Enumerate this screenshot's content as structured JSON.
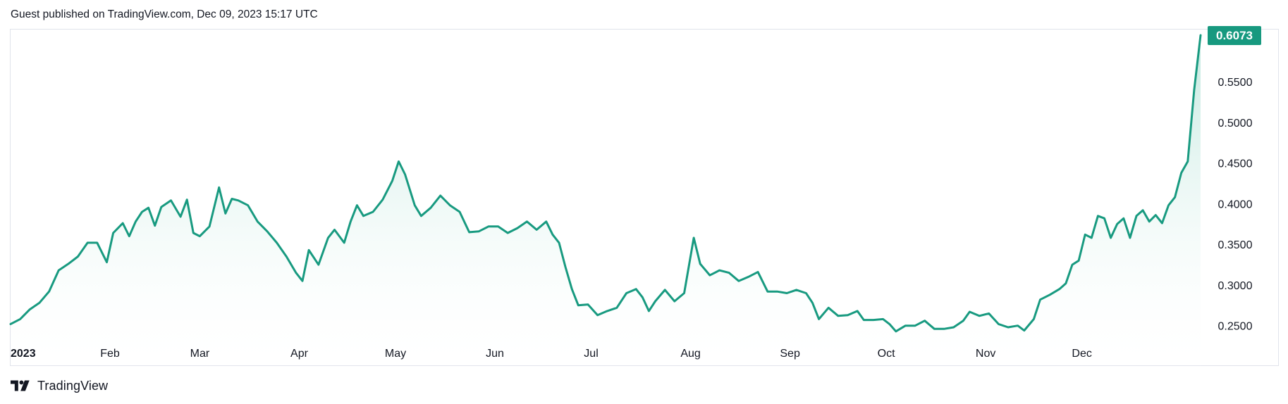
{
  "header": {
    "published_text": "Guest published on TradingView.com, Dec 09, 2023 15:17 UTC"
  },
  "footer": {
    "logo_icon": "tradingview-logo-icon",
    "brand_text": "TradingView"
  },
  "colors": {
    "line": "#189a80",
    "fill_top": "#b7e4d9",
    "badge_bg": "#17997f",
    "axis_text": "#131722",
    "border": "#e0e3eb"
  },
  "chart_data": {
    "type": "area",
    "title": "",
    "xlabel": "",
    "ylabel": "",
    "grid": false,
    "x_tick_labels": [
      "2023",
      "Feb",
      "Mar",
      "Apr",
      "May",
      "Jun",
      "Jul",
      "Aug",
      "Sep",
      "Oct",
      "Nov",
      "Dec"
    ],
    "y_tick_labels": [
      "0.2500",
      "0.3000",
      "0.3500",
      "0.4000",
      "0.4500",
      "0.5000",
      "0.5500"
    ],
    "ylim": [
      0.235,
      0.6125
    ],
    "last_value_label": "0.6073",
    "series": [
      {
        "points": [
          [
            "2023-01-01",
            0.252
          ],
          [
            "2023-01-04",
            0.258
          ],
          [
            "2023-01-07",
            0.27
          ],
          [
            "2023-01-10",
            0.278
          ],
          [
            "2023-01-13",
            0.292
          ],
          [
            "2023-01-16",
            0.318
          ],
          [
            "2023-01-19",
            0.326
          ],
          [
            "2023-01-22",
            0.335
          ],
          [
            "2023-01-25",
            0.352
          ],
          [
            "2023-01-28",
            0.352
          ],
          [
            "2023-01-31",
            0.328
          ],
          [
            "2023-02-02",
            0.364
          ],
          [
            "2023-02-05",
            0.376
          ],
          [
            "2023-02-07",
            0.36
          ],
          [
            "2023-02-09",
            0.378
          ],
          [
            "2023-02-11",
            0.39
          ],
          [
            "2023-02-13",
            0.395
          ],
          [
            "2023-02-15",
            0.373
          ],
          [
            "2023-02-17",
            0.396
          ],
          [
            "2023-02-20",
            0.404
          ],
          [
            "2023-02-23",
            0.384
          ],
          [
            "2023-02-25",
            0.405
          ],
          [
            "2023-02-27",
            0.364
          ],
          [
            "2023-03-01",
            0.36
          ],
          [
            "2023-03-04",
            0.372
          ],
          [
            "2023-03-07",
            0.42
          ],
          [
            "2023-03-09",
            0.388
          ],
          [
            "2023-03-11",
            0.406
          ],
          [
            "2023-03-13",
            0.404
          ],
          [
            "2023-03-16",
            0.398
          ],
          [
            "2023-03-19",
            0.378
          ],
          [
            "2023-03-22",
            0.366
          ],
          [
            "2023-03-25",
            0.352
          ],
          [
            "2023-03-28",
            0.335
          ],
          [
            "2023-03-31",
            0.315
          ],
          [
            "2023-04-02",
            0.305
          ],
          [
            "2023-04-04",
            0.343
          ],
          [
            "2023-04-07",
            0.325
          ],
          [
            "2023-04-10",
            0.358
          ],
          [
            "2023-04-12",
            0.368
          ],
          [
            "2023-04-15",
            0.352
          ],
          [
            "2023-04-17",
            0.378
          ],
          [
            "2023-04-19",
            0.398
          ],
          [
            "2023-04-21",
            0.385
          ],
          [
            "2023-04-24",
            0.39
          ],
          [
            "2023-04-27",
            0.405
          ],
          [
            "2023-04-30",
            0.428
          ],
          [
            "2023-05-02",
            0.452
          ],
          [
            "2023-05-04",
            0.436
          ],
          [
            "2023-05-07",
            0.398
          ],
          [
            "2023-05-09",
            0.385
          ],
          [
            "2023-05-12",
            0.395
          ],
          [
            "2023-05-15",
            0.41
          ],
          [
            "2023-05-18",
            0.398
          ],
          [
            "2023-05-21",
            0.39
          ],
          [
            "2023-05-24",
            0.365
          ],
          [
            "2023-05-27",
            0.366
          ],
          [
            "2023-05-30",
            0.372
          ],
          [
            "2023-06-02",
            0.372
          ],
          [
            "2023-06-05",
            0.364
          ],
          [
            "2023-06-08",
            0.37
          ],
          [
            "2023-06-11",
            0.378
          ],
          [
            "2023-06-14",
            0.368
          ],
          [
            "2023-06-17",
            0.378
          ],
          [
            "2023-06-19",
            0.362
          ],
          [
            "2023-06-21",
            0.352
          ],
          [
            "2023-06-23",
            0.322
          ],
          [
            "2023-06-25",
            0.295
          ],
          [
            "2023-06-27",
            0.275
          ],
          [
            "2023-06-30",
            0.276
          ],
          [
            "2023-07-03",
            0.263
          ],
          [
            "2023-07-06",
            0.268
          ],
          [
            "2023-07-09",
            0.272
          ],
          [
            "2023-07-12",
            0.29
          ],
          [
            "2023-07-15",
            0.295
          ],
          [
            "2023-07-17",
            0.285
          ],
          [
            "2023-07-19",
            0.268
          ],
          [
            "2023-07-21",
            0.28
          ],
          [
            "2023-07-24",
            0.294
          ],
          [
            "2023-07-27",
            0.28
          ],
          [
            "2023-07-30",
            0.29
          ],
          [
            "2023-08-02",
            0.358
          ],
          [
            "2023-08-04",
            0.326
          ],
          [
            "2023-08-07",
            0.312
          ],
          [
            "2023-08-10",
            0.318
          ],
          [
            "2023-08-13",
            0.315
          ],
          [
            "2023-08-16",
            0.305
          ],
          [
            "2023-08-19",
            0.31
          ],
          [
            "2023-08-22",
            0.316
          ],
          [
            "2023-08-25",
            0.292
          ],
          [
            "2023-08-28",
            0.292
          ],
          [
            "2023-08-31",
            0.29
          ],
          [
            "2023-09-03",
            0.294
          ],
          [
            "2023-09-06",
            0.29
          ],
          [
            "2023-09-08",
            0.278
          ],
          [
            "2023-09-10",
            0.258
          ],
          [
            "2023-09-13",
            0.272
          ],
          [
            "2023-09-16",
            0.262
          ],
          [
            "2023-09-19",
            0.263
          ],
          [
            "2023-09-22",
            0.268
          ],
          [
            "2023-09-24",
            0.257
          ],
          [
            "2023-09-27",
            0.257
          ],
          [
            "2023-09-30",
            0.258
          ],
          [
            "2023-10-02",
            0.252
          ],
          [
            "2023-10-04",
            0.243
          ],
          [
            "2023-10-07",
            0.25
          ],
          [
            "2023-10-10",
            0.25
          ],
          [
            "2023-10-13",
            0.256
          ],
          [
            "2023-10-16",
            0.246
          ],
          [
            "2023-10-19",
            0.246
          ],
          [
            "2023-10-22",
            0.248
          ],
          [
            "2023-10-25",
            0.256
          ],
          [
            "2023-10-27",
            0.267
          ],
          [
            "2023-10-30",
            0.262
          ],
          [
            "2023-11-02",
            0.265
          ],
          [
            "2023-11-05",
            0.252
          ],
          [
            "2023-11-08",
            0.248
          ],
          [
            "2023-11-11",
            0.25
          ],
          [
            "2023-11-13",
            0.244
          ],
          [
            "2023-11-16",
            0.258
          ],
          [
            "2023-11-18",
            0.282
          ],
          [
            "2023-11-21",
            0.288
          ],
          [
            "2023-11-24",
            0.295
          ],
          [
            "2023-11-26",
            0.302
          ],
          [
            "2023-11-28",
            0.325
          ],
          [
            "2023-11-30",
            0.33
          ],
          [
            "2023-12-02",
            0.362
          ],
          [
            "2023-12-04",
            0.358
          ],
          [
            "2023-12-06",
            0.385
          ],
          [
            "2023-12-08",
            0.382
          ],
          [
            "2023-12-10",
            0.358
          ],
          [
            "2023-12-12",
            0.375
          ],
          [
            "2023-12-14",
            0.382
          ],
          [
            "2023-12-16",
            0.358
          ],
          [
            "2023-12-18",
            0.385
          ],
          [
            "2023-12-20",
            0.392
          ],
          [
            "2023-12-22",
            0.378
          ],
          [
            "2023-12-24",
            0.386
          ],
          [
            "2023-12-26",
            0.376
          ],
          [
            "2023-12-28",
            0.398
          ],
          [
            "2023-12-30",
            0.408
          ],
          [
            "2024-01-01",
            0.438
          ],
          [
            "2024-01-03",
            0.452
          ],
          [
            "2024-01-05",
            0.54
          ],
          [
            "2024-01-07",
            0.6073
          ]
        ]
      }
    ]
  }
}
